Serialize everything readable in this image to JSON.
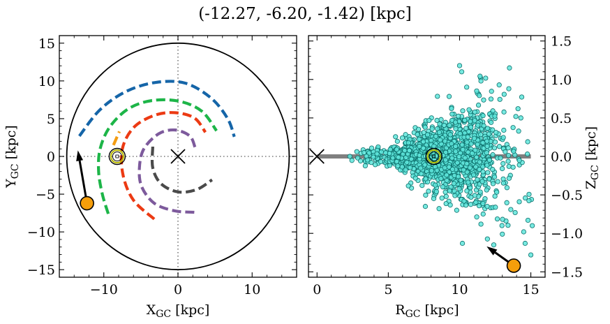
{
  "title": "(-12.27, -6.20, -1.42) [kpc]",
  "colors": {
    "arm_blue": "#1565a8",
    "arm_green": "#1db548",
    "arm_red": "#ec3a13",
    "arm_purple": "#7d5a9c",
    "arm_gray": "#4a4a4a",
    "arm_orange": "#f39c12",
    "marker_orange": "#f59e0b",
    "sun_circle": "#b8b800",
    "scatter_fill": "#5fe6dc",
    "scatter_edge": "#0c6e6a",
    "disk_band": "#808080"
  },
  "chart_data": [
    {
      "type": "scatter",
      "panel": "left",
      "xlabel": "X",
      "xlabel_sub": "GC",
      "xlabel_unit": " [kpc]",
      "ylabel": "Y",
      "ylabel_sub": "GC",
      "ylabel_unit": " [kpc]",
      "xlim": [
        -16,
        16
      ],
      "ylim": [
        -16,
        16
      ],
      "xticks": [
        -10,
        0,
        10
      ],
      "xtick_labels": [
        "−10",
        "0",
        "10"
      ],
      "yticks": [
        -15,
        -10,
        -5,
        0,
        5,
        10,
        15
      ],
      "ytick_labels": [
        "−15",
        "−10",
        "−5",
        "0",
        "5",
        "10",
        "15"
      ],
      "galaxy_radius": 15,
      "galactic_center": {
        "x": 0,
        "y": 0
      },
      "sun": {
        "x": -8.2,
        "y": 0
      },
      "target": {
        "x": -12.27,
        "y": -6.2
      },
      "target_arrow_tip": {
        "x": -13.5,
        "y": 0.8
      },
      "spiral_arms": [
        {
          "color": "arm_blue",
          "points": [
            [
              -13.3,
              2.7
            ],
            [
              -10.5,
              6.2
            ],
            [
              -7,
              8.6
            ],
            [
              -3,
              9.8
            ],
            [
              1,
              9.7
            ],
            [
              4.5,
              7.7
            ],
            [
              6.7,
              5
            ],
            [
              7.6,
              2.6
            ]
          ]
        },
        {
          "color": "arm_green",
          "points": [
            [
              -9.4,
              -7.6
            ],
            [
              -10.2,
              -5
            ],
            [
              -10.7,
              -2
            ],
            [
              -10.5,
              1
            ],
            [
              -9.2,
              3.9
            ],
            [
              -6.7,
              6.3
            ],
            [
              -3.5,
              7.4
            ],
            [
              0.2,
              7.3
            ],
            [
              3.2,
              6
            ],
            [
              5.2,
              3.4
            ]
          ]
        },
        {
          "color": "arm_red",
          "points": [
            [
              -3.2,
              -8.3
            ],
            [
              -6,
              -5.8
            ],
            [
              -7.4,
              -2.5
            ],
            [
              -7.5,
              1
            ],
            [
              -6,
              3.8
            ],
            [
              -3.3,
              5.4
            ],
            [
              -0.5,
              5.8
            ],
            [
              2.2,
              5.1
            ],
            [
              3.7,
              3.2
            ]
          ]
        },
        {
          "color": "arm_purple",
          "points": [
            [
              2.2,
              -7.4
            ],
            [
              -0.5,
              -7.2
            ],
            [
              -3.2,
              -6.2
            ],
            [
              -4.9,
              -4
            ],
            [
              -5.2,
              -1.5
            ],
            [
              -4.6,
              1
            ],
            [
              -2.6,
              3
            ],
            [
              -0.4,
              3.5
            ],
            [
              1.6,
              2.7
            ],
            [
              2.3,
              1.2
            ]
          ]
        },
        {
          "color": "arm_gray",
          "points": [
            [
              -3.4,
              1.3
            ],
            [
              -3.4,
              -1.5
            ],
            [
              -2.3,
              -3.6
            ],
            [
              0,
              -4.7
            ],
            [
              2.5,
              -4.4
            ],
            [
              4.6,
              -3.1
            ]
          ]
        },
        {
          "color": "arm_orange",
          "points": [
            [
              -8.7,
              1.5
            ],
            [
              -7.9,
              3.3
            ]
          ]
        }
      ]
    },
    {
      "type": "scatter",
      "panel": "right",
      "xlabel": "R",
      "xlabel_sub": "GC",
      "xlabel_unit": " [kpc]",
      "ylabel": "Z",
      "ylabel_sub": "GC",
      "ylabel_unit": " [kpc]",
      "xlim": [
        -0.6,
        16
      ],
      "ylim": [
        -1.57,
        1.57
      ],
      "xticks": [
        0,
        5,
        10,
        15
      ],
      "xtick_labels": [
        "0",
        "5",
        "10",
        "15"
      ],
      "yticks": [
        -1.5,
        -1,
        -0.5,
        0,
        0.5,
        1,
        1.5
      ],
      "ytick_labels": [
        "−1.5",
        "−1.0",
        "−0.5",
        "0.0",
        "0.5",
        "1.0",
        "1.5"
      ],
      "disk_band": {
        "x_start": 0,
        "x_end": 15,
        "z": 0
      },
      "galactic_center": {
        "r": 0,
        "z": 0
      },
      "sun": {
        "r": 8.2,
        "z": 0
      },
      "target": {
        "r": 13.8,
        "z": -1.42
      },
      "target_arrow_tip": {
        "r": 11.9,
        "z": -1.17
      },
      "stars": {
        "description_count": 1500,
        "r_range": [
          2.2,
          15.3
        ],
        "z_range": [
          -1.45,
          1.2
        ],
        "outliers": [
          [
            10,
            1.18
          ],
          [
            10.15,
            1.1
          ],
          [
            13.5,
            1.15
          ],
          [
            11.5,
            0.98
          ],
          [
            10.5,
            0.9
          ],
          [
            11.2,
            0.85
          ],
          [
            14.1,
            0.62
          ],
          [
            14.3,
            0.5
          ],
          [
            7.6,
            -0.65
          ],
          [
            9.8,
            -0.7
          ],
          [
            11.5,
            -0.88
          ],
          [
            13.9,
            -0.73
          ],
          [
            14.8,
            -0.83
          ],
          [
            15.1,
            -0.9
          ],
          [
            13,
            -1.01
          ],
          [
            10.2,
            -1.13
          ],
          [
            12.4,
            -1.15
          ],
          [
            14.6,
            -1.13
          ],
          [
            15,
            -1.28
          ],
          [
            14.5,
            -0.98
          ],
          [
            3.3,
            0.05
          ],
          [
            2.3,
            0.0
          ]
        ]
      }
    }
  ]
}
